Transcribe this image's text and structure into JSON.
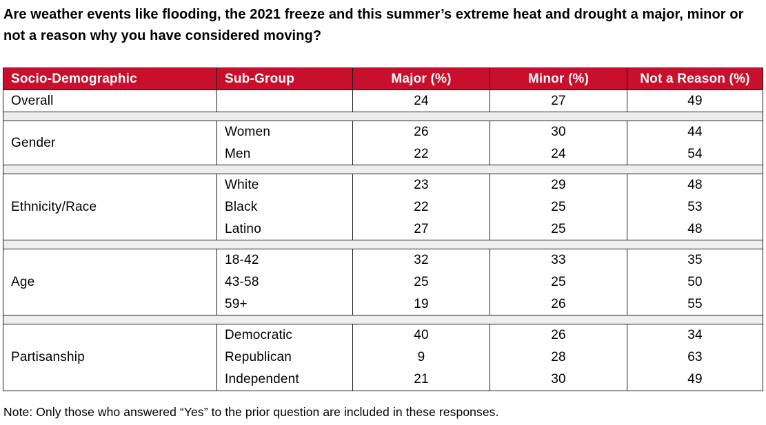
{
  "title": "Are weather events like flooding, the 2021 freeze and this summer’s extreme heat and drought a major, minor or not a reason why you have considered moving?",
  "headers": [
    "Socio-Demographic",
    "Sub-Group",
    "Major (%)",
    "Minor (%)",
    "Not a Reason (%)"
  ],
  "overall": {
    "label": "Overall",
    "sub": "",
    "major": "24",
    "minor": "27",
    "not": "49"
  },
  "groups": [
    {
      "label": "Gender",
      "rows": [
        {
          "sub": "Women",
          "major": "26",
          "minor": "30",
          "not": "44"
        },
        {
          "sub": "Men",
          "major": "22",
          "minor": "24",
          "not": "54"
        }
      ]
    },
    {
      "label": "Ethnicity/Race",
      "rows": [
        {
          "sub": "White",
          "major": "23",
          "minor": "29",
          "not": "48"
        },
        {
          "sub": "Black",
          "major": "22",
          "minor": "25",
          "not": "53"
        },
        {
          "sub": "Latino",
          "major": "27",
          "minor": "25",
          "not": "48"
        }
      ]
    },
    {
      "label": "Age",
      "rows": [
        {
          "sub": "18-42",
          "major": "32",
          "minor": "33",
          "not": "35"
        },
        {
          "sub": "43-58",
          "major": "25",
          "minor": "25",
          "not": "50"
        },
        {
          "sub": "59+",
          "major": "19",
          "minor": "26",
          "not": "55"
        }
      ]
    },
    {
      "label": "Partisanship",
      "rows": [
        {
          "sub": "Democratic",
          "major": "40",
          "minor": "26",
          "not": "34"
        },
        {
          "sub": "Republican",
          "major": "9",
          "minor": "28",
          "not": "63"
        },
        {
          "sub": "Independent",
          "major": "21",
          "minor": "30",
          "not": "49"
        }
      ]
    }
  ],
  "note": "Note: Only those who answered “Yes” to the prior question are included in these responses.",
  "colors": {
    "header_bg": "#c8102e",
    "header_text": "#ffffff",
    "separator": "#eeeeee"
  }
}
